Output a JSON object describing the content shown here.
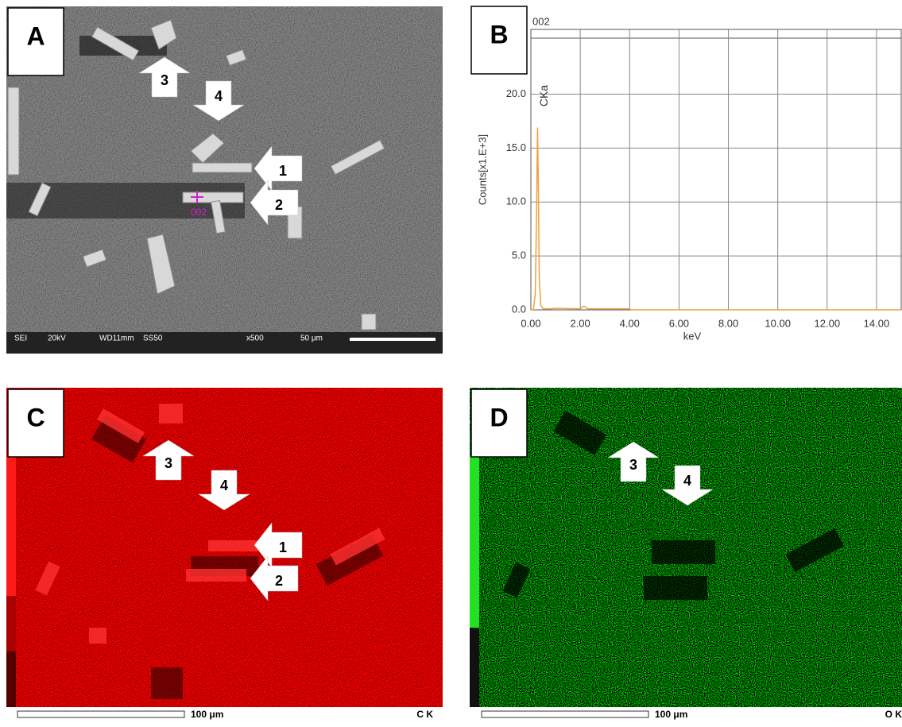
{
  "panel_a": {
    "label": "A",
    "arrows": [
      "1",
      "2",
      "3",
      "4"
    ],
    "point_label": "002",
    "info_bar": [
      "SEI",
      "20kV",
      "WD11mm",
      "SS50",
      "x500",
      "50 μm"
    ]
  },
  "panel_b": {
    "label": "B"
  },
  "chart_data": {
    "type": "line",
    "title": "002",
    "x_label": "keV",
    "y_label": "Counts[x1.E+3]",
    "annotation": "CKa",
    "color": "#f0a040",
    "grid": true,
    "x": [
      0,
      0.1,
      0.18,
      0.23,
      0.27,
      0.3,
      0.34,
      0.4,
      0.5,
      0.8,
      1.0,
      1.5,
      2.0,
      2.15,
      2.3,
      3.0,
      4.0,
      4.05,
      6.0,
      8.0,
      10.0,
      12.0,
      14.0,
      15.0
    ],
    "values": [
      0,
      0,
      1.5,
      9.0,
      16.9,
      12.0,
      3.0,
      0.4,
      0.1,
      0.1,
      0.15,
      0.12,
      0.1,
      0.35,
      0.1,
      0.1,
      0.1,
      0,
      0,
      0,
      0,
      0,
      0,
      0
    ],
    "xlim": [
      0,
      15
    ],
    "ylim": [
      0,
      26
    ],
    "xticks": [
      {
        "value": 0,
        "label": "0.00"
      },
      {
        "value": 2,
        "label": "2.00"
      },
      {
        "value": 4,
        "label": "4.00"
      },
      {
        "value": 6,
        "label": "6.00"
      },
      {
        "value": 8,
        "label": "8.00"
      },
      {
        "value": 10,
        "label": "10.00"
      },
      {
        "value": 12,
        "label": "12.00"
      },
      {
        "value": 14,
        "label": "14.00"
      }
    ],
    "yticks": [
      {
        "value": 0,
        "label": "0.0"
      },
      {
        "value": 5,
        "label": "5.0"
      },
      {
        "value": 10,
        "label": "10.0"
      },
      {
        "value": 15,
        "label": "15.0"
      },
      {
        "value": 20,
        "label": "20.0"
      }
    ]
  },
  "panel_c": {
    "label": "C",
    "arrows": [
      "1",
      "2",
      "3",
      "4"
    ],
    "scale_bar": "100 μm",
    "element": "C K"
  },
  "panel_d": {
    "label": "D",
    "arrows": [
      "3",
      "4"
    ],
    "scale_bar": "100 μm",
    "element": "O K"
  }
}
